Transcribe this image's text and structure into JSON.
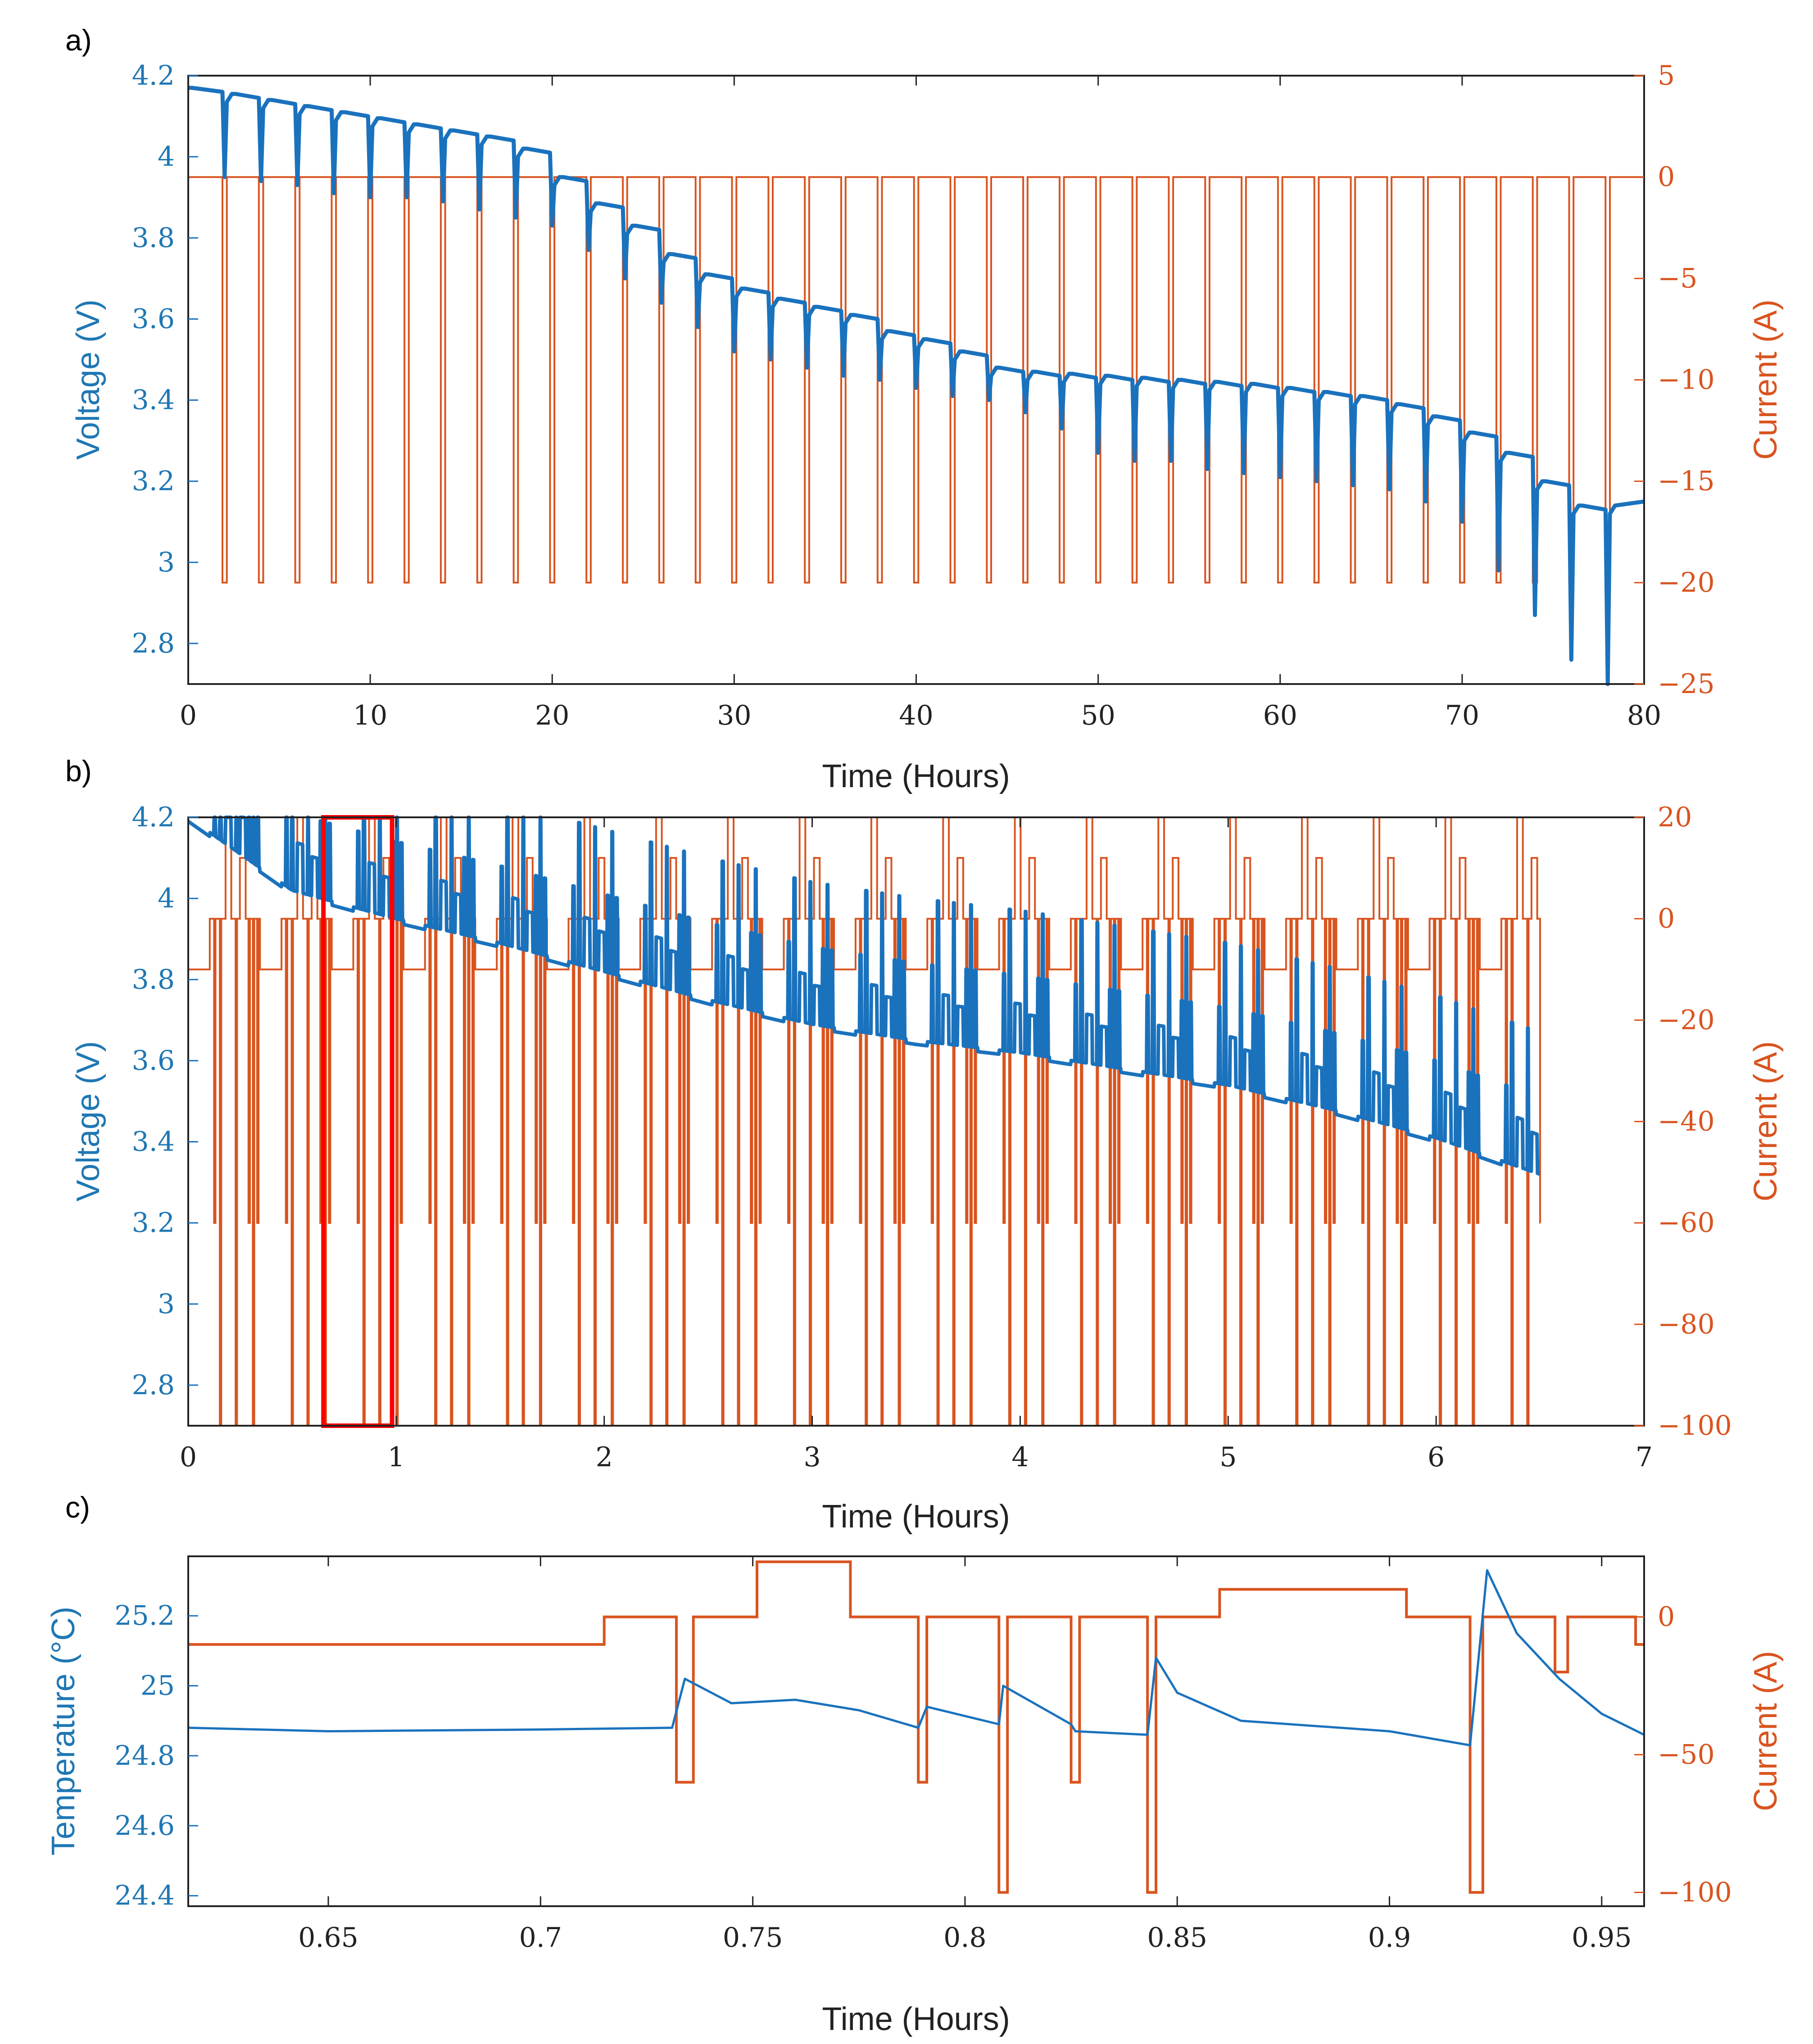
{
  "colors": {
    "voltage": "#1a72bd",
    "current": "#d9541f",
    "highlight": "#ff0000",
    "axis": "#222222"
  },
  "chart_data": [
    {
      "id": "a",
      "panel_label": "a)",
      "type": "line",
      "xlabel": "Time (Hours)",
      "ylabel_left": "Voltage (V)",
      "ylabel_right": "Current (A)",
      "xlim": [
        0,
        80
      ],
      "ylim_left": [
        2.7,
        4.2
      ],
      "ylim_right": [
        -25,
        5
      ],
      "xticks": [
        "0",
        "10",
        "20",
        "30",
        "40",
        "50",
        "60",
        "70",
        "80"
      ],
      "yticks_left": [
        "2.8",
        "3",
        "3.2",
        "3.4",
        "3.6",
        "3.8",
        "4",
        "4.2"
      ],
      "yticks_right": [
        "−25",
        "−20",
        "−15",
        "−10",
        "−5",
        "0",
        "5"
      ],
      "pulse_times": [
        2,
        4,
        6,
        8,
        10,
        12,
        14,
        16,
        18,
        20,
        22,
        24,
        26,
        28,
        30,
        32,
        34,
        36,
        38,
        40,
        42,
        44,
        46,
        48,
        50,
        52,
        54,
        56,
        58,
        60,
        62,
        64,
        66,
        68,
        70,
        72,
        74,
        76,
        78
      ],
      "series": [
        {
          "name": "Voltage",
          "axis": "left",
          "description": "rest voltage per 2-hour step with -20 A pulse dips",
          "step_start_voltage": [
            4.17,
            4.155,
            4.14,
            4.125,
            4.11,
            4.095,
            4.08,
            4.065,
            4.05,
            4.02,
            3.95,
            3.885,
            3.83,
            3.76,
            3.71,
            3.675,
            3.65,
            3.63,
            3.61,
            3.57,
            3.55,
            3.52,
            3.48,
            3.47,
            3.465,
            3.46,
            3.455,
            3.45,
            3.445,
            3.44,
            3.43,
            3.42,
            3.41,
            3.39,
            3.36,
            3.32,
            3.27,
            3.2,
            3.14
          ],
          "pulse_min_voltage": [
            3.95,
            3.94,
            3.93,
            3.91,
            3.9,
            3.9,
            3.89,
            3.87,
            3.85,
            3.83,
            3.77,
            3.7,
            3.64,
            3.58,
            3.52,
            3.5,
            3.48,
            3.46,
            3.45,
            3.43,
            3.41,
            3.4,
            3.37,
            3.33,
            3.27,
            3.25,
            3.25,
            3.23,
            3.22,
            3.21,
            3.2,
            3.19,
            3.18,
            3.15,
            3.1,
            2.98,
            2.87,
            2.76,
            2.7
          ]
        },
        {
          "name": "Current",
          "axis": "right",
          "base_current": 0,
          "pulse_current": -20
        }
      ]
    },
    {
      "id": "b",
      "panel_label": "b)",
      "type": "line",
      "xlabel": "Time (Hours)",
      "ylabel_left": "Voltage (V)",
      "ylabel_right": "Current (A)",
      "xlim": [
        0,
        7
      ],
      "ylim_left": [
        2.7,
        4.2
      ],
      "ylim_right": [
        -100,
        20
      ],
      "xticks": [
        "0",
        "1",
        "2",
        "3",
        "4",
        "5",
        "6",
        "7"
      ],
      "yticks_left": [
        "2.8",
        "3",
        "3.2",
        "3.4",
        "3.6",
        "3.8",
        "4",
        "4.2"
      ],
      "yticks_right": [
        "−100",
        "−80",
        "−60",
        "−40",
        "−20",
        "0",
        "20"
      ],
      "highlight_window": [
        0.65,
        0.98
      ],
      "cycle_period_hours": 0.345,
      "cycles": 19,
      "series": [
        {
          "name": "Voltage",
          "axis": "left",
          "baseline_points": [
            [
              0,
              4.15
            ],
            [
              0.5,
              3.97
            ],
            [
              1,
              3.9
            ],
            [
              1.5,
              3.84
            ],
            [
              2,
              3.77
            ],
            [
              2.5,
              3.7
            ],
            [
              3,
              3.64
            ],
            [
              3.5,
              3.6
            ],
            [
              4,
              3.57
            ],
            [
              4.5,
              3.53
            ],
            [
              5,
              3.49
            ],
            [
              5.5,
              3.43
            ],
            [
              6,
              3.36
            ],
            [
              6.5,
              3.27
            ]
          ]
        },
        {
          "name": "Current",
          "axis": "right",
          "levels": [
            -10,
            0,
            12,
            20,
            -20,
            -50,
            -60,
            -100
          ]
        }
      ]
    },
    {
      "id": "c",
      "panel_label": "c)",
      "type": "line",
      "xlabel": "Time (Hours)",
      "ylabel_left": "Temperature (°C)",
      "ylabel_right": "Current (A)",
      "xlim": [
        0.617,
        0.96
      ],
      "ylim_left": [
        24.37,
        25.37
      ],
      "ylim_right": [
        -105,
        22
      ],
      "xticks": [
        "0.65",
        "0.7",
        "0.75",
        "0.8",
        "0.85",
        "0.9",
        "0.95"
      ],
      "xtick_values": [
        0.65,
        0.7,
        0.75,
        0.8,
        0.85,
        0.9,
        0.95
      ],
      "yticks_left": [
        "24.4",
        "24.6",
        "24.8",
        "25",
        "25.2"
      ],
      "yticks_left_values": [
        24.4,
        24.6,
        24.8,
        25.0,
        25.2
      ],
      "yticks_right": [
        "−100",
        "−50",
        "0"
      ],
      "yticks_right_values": [
        -100,
        -50,
        0
      ],
      "series": [
        {
          "name": "Temperature",
          "axis": "left",
          "points": [
            [
              0.617,
              24.88
            ],
            [
              0.65,
              24.87
            ],
            [
              0.7,
              24.875
            ],
            [
              0.731,
              24.88
            ],
            [
              0.734,
              25.02
            ],
            [
              0.745,
              24.95
            ],
            [
              0.76,
              24.96
            ],
            [
              0.775,
              24.93
            ],
            [
              0.789,
              24.88
            ],
            [
              0.791,
              24.94
            ],
            [
              0.808,
              24.89
            ],
            [
              0.809,
              25.0
            ],
            [
              0.825,
              24.89
            ],
            [
              0.826,
              24.87
            ],
            [
              0.843,
              24.86
            ],
            [
              0.845,
              25.08
            ],
            [
              0.85,
              24.98
            ],
            [
              0.865,
              24.9
            ],
            [
              0.9,
              24.87
            ],
            [
              0.919,
              24.83
            ],
            [
              0.923,
              25.33
            ],
            [
              0.93,
              25.15
            ],
            [
              0.94,
              25.02
            ],
            [
              0.95,
              24.92
            ],
            [
              0.96,
              24.86
            ]
          ]
        },
        {
          "name": "Current",
          "axis": "right",
          "points": [
            [
              0.617,
              -10
            ],
            [
              0.715,
              -10
            ],
            [
              0.715,
              0
            ],
            [
              0.732,
              0
            ],
            [
              0.732,
              -60
            ],
            [
              0.736,
              -60
            ],
            [
              0.736,
              0
            ],
            [
              0.751,
              0
            ],
            [
              0.751,
              20
            ],
            [
              0.773,
              20
            ],
            [
              0.773,
              0
            ],
            [
              0.789,
              0
            ],
            [
              0.789,
              -60
            ],
            [
              0.791,
              -60
            ],
            [
              0.791,
              0
            ],
            [
              0.808,
              0
            ],
            [
              0.808,
              -100
            ],
            [
              0.81,
              -100
            ],
            [
              0.81,
              0
            ],
            [
              0.825,
              0
            ],
            [
              0.825,
              -60
            ],
            [
              0.827,
              -60
            ],
            [
              0.827,
              0
            ],
            [
              0.843,
              0
            ],
            [
              0.843,
              -100
            ],
            [
              0.845,
              -100
            ],
            [
              0.845,
              0
            ],
            [
              0.86,
              0
            ],
            [
              0.86,
              10
            ],
            [
              0.904,
              10
            ],
            [
              0.904,
              0
            ],
            [
              0.919,
              0
            ],
            [
              0.919,
              -100
            ],
            [
              0.922,
              -100
            ],
            [
              0.922,
              0
            ],
            [
              0.939,
              0
            ],
            [
              0.939,
              -20
            ],
            [
              0.942,
              -20
            ],
            [
              0.942,
              0
            ],
            [
              0.958,
              0
            ],
            [
              0.958,
              -10
            ],
            [
              0.96,
              -10
            ]
          ]
        }
      ]
    }
  ]
}
